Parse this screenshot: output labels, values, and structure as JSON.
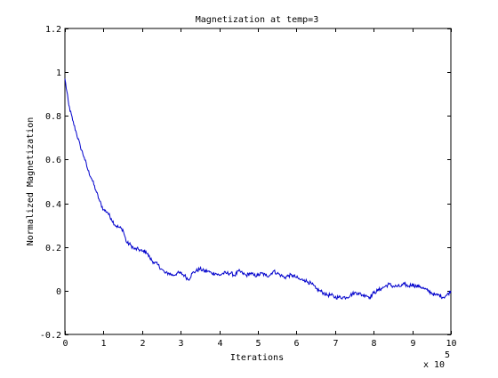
{
  "chart_data": {
    "type": "line",
    "title": "Magnetization at temp=3",
    "xlabel": "Iterations",
    "ylabel": "Normalized Magnetization",
    "xlim": [
      0,
      10
    ],
    "ylim": [
      -0.2,
      1.2
    ],
    "x_ticks": [
      "0",
      "1",
      "2",
      "3",
      "4",
      "5",
      "6",
      "7",
      "8",
      "9",
      "10"
    ],
    "y_ticks": [
      "-0.2",
      "0",
      "0.2",
      "0.4",
      "0.6",
      "0.8",
      "1",
      "1.2"
    ],
    "x_multiplier_base": "x 10",
    "x_multiplier_exponent": "5",
    "grid": false,
    "series": [
      {
        "color": "#0000cc",
        "x": [
          0,
          0.1,
          0.2,
          0.3,
          0.4,
          0.5,
          0.6,
          0.7,
          0.8,
          0.9,
          1.0,
          1.1,
          1.2,
          1.3,
          1.4,
          1.5,
          1.6,
          1.7,
          1.8,
          1.9,
          2.0,
          2.1,
          2.2,
          2.3,
          2.4,
          2.5,
          2.6,
          2.7,
          2.8,
          2.9,
          3.0,
          3.1,
          3.2,
          3.3,
          3.4,
          3.5,
          3.6,
          3.7,
          3.8,
          3.9,
          4.0,
          4.1,
          4.2,
          4.3,
          4.4,
          4.5,
          4.6,
          4.7,
          4.8,
          4.9,
          5.0,
          5.1,
          5.2,
          5.3,
          5.4,
          5.5,
          5.6,
          5.7,
          5.8,
          5.9,
          6.0,
          6.1,
          6.2,
          6.3,
          6.4,
          6.5,
          6.6,
          6.7,
          6.8,
          6.9,
          7.0,
          7.1,
          7.2,
          7.3,
          7.4,
          7.5,
          7.6,
          7.7,
          7.8,
          7.9,
          8.0,
          8.1,
          8.2,
          8.3,
          8.4,
          8.5,
          8.6,
          8.7,
          8.8,
          8.9,
          9.0,
          9.1,
          9.2,
          9.3,
          9.4,
          9.5,
          9.6,
          9.7,
          9.8,
          9.9,
          10.0
        ],
        "values": [
          0.97,
          0.85,
          0.78,
          0.72,
          0.66,
          0.61,
          0.55,
          0.51,
          0.46,
          0.41,
          0.37,
          0.36,
          0.33,
          0.3,
          0.29,
          0.28,
          0.22,
          0.21,
          0.19,
          0.19,
          0.18,
          0.18,
          0.15,
          0.13,
          0.12,
          0.1,
          0.08,
          0.08,
          0.07,
          0.08,
          0.08,
          0.07,
          0.05,
          0.08,
          0.09,
          0.1,
          0.09,
          0.09,
          0.08,
          0.08,
          0.07,
          0.08,
          0.08,
          0.08,
          0.07,
          0.09,
          0.08,
          0.07,
          0.08,
          0.07,
          0.07,
          0.08,
          0.07,
          0.07,
          0.09,
          0.08,
          0.07,
          0.06,
          0.07,
          0.07,
          0.06,
          0.05,
          0.05,
          0.04,
          0.03,
          0.01,
          0.0,
          -0.01,
          -0.02,
          -0.02,
          -0.03,
          -0.03,
          -0.03,
          -0.03,
          -0.02,
          -0.01,
          -0.01,
          -0.02,
          -0.02,
          -0.03,
          -0.01,
          0.0,
          0.01,
          0.02,
          0.03,
          0.02,
          0.02,
          0.02,
          0.03,
          0.02,
          0.03,
          0.02,
          0.02,
          0.01,
          0.0,
          -0.01,
          -0.02,
          -0.02,
          -0.03,
          -0.02,
          0.0
        ]
      }
    ]
  }
}
